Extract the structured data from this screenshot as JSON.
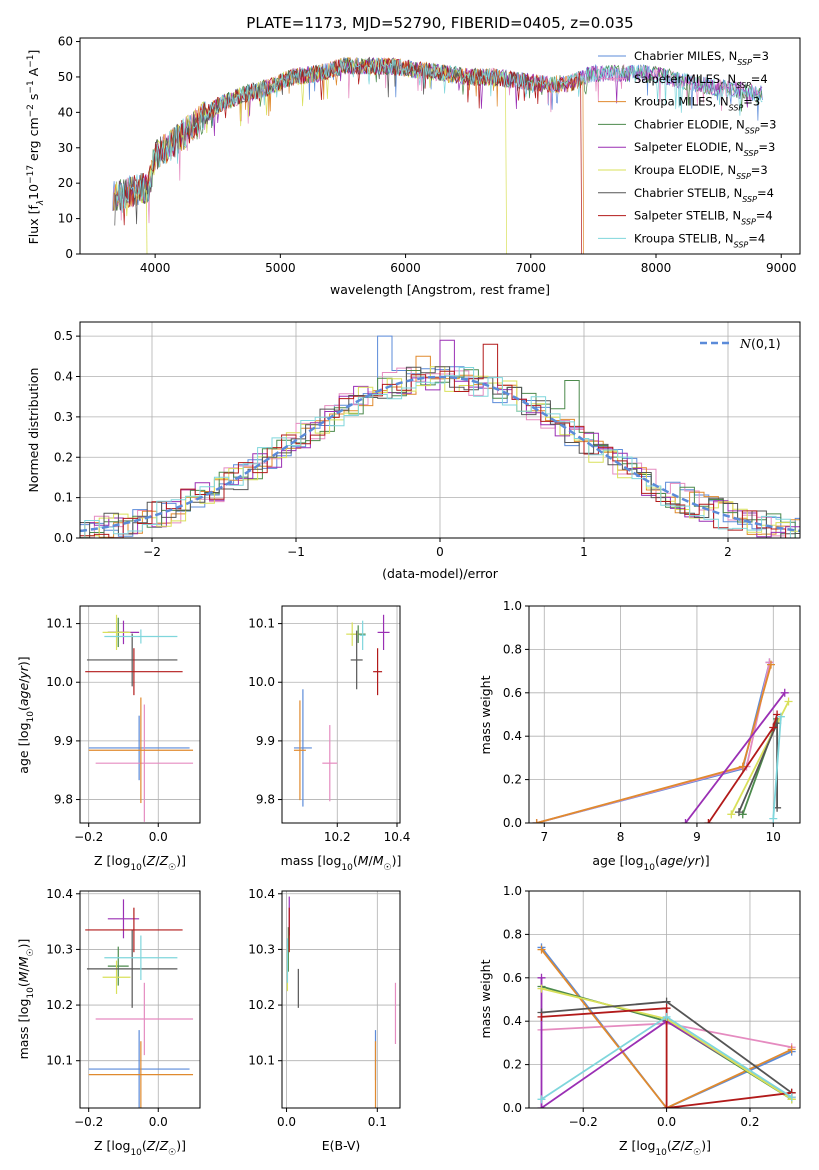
{
  "colors": {
    "chabrier_miles": "#5b8bd9",
    "salpeter_miles": "#e58bc0",
    "kroupa_miles": "#e08a2e",
    "chabrier_elodie": "#4c8a4c",
    "salpeter_elodie": "#9a2fb4",
    "kroupa_elodie": "#d9e05a",
    "chabrier_stelib": "#555555",
    "salpeter_stelib": "#b21a1a",
    "kroupa_stelib": "#7fd6dc",
    "grid": "#b0b0b0",
    "gaussian": "#5b8bd9"
  },
  "chart_data": [
    {
      "id": "spectrum",
      "type": "line",
      "title": "PLATE=1173, MJD=52790, FIBERID=0405, z=0.035",
      "xlabel": "wavelength [Angstrom, rest frame]",
      "ylabel": "Flux [f_λ10^-17 erg cm^-2 s^-1 A^-1]",
      "xlim": [
        3400,
        9150
      ],
      "ylim": [
        0,
        61
      ],
      "xticks": [
        "4000",
        "5000",
        "6000",
        "7000",
        "8000",
        "9000"
      ],
      "yticks": [
        "0",
        "10",
        "20",
        "30",
        "40",
        "50",
        "60"
      ],
      "grid": false,
      "legend_position": "top-right",
      "legend": [
        "Chabrier MILES, N_SSP=3",
        "Salpeter MILES, N_SSP=4",
        "Kroupa MILES, N_SSP=3",
        "Chabrier ELODIE, N_SSP=3",
        "Salpeter ELODIE, N_SSP=3",
        "Kroupa ELODIE, N_SSP=3",
        "Chabrier STELIB, N_SSP=4",
        "Salpeter STELIB, N_SSP=4",
        "Kroupa STELIB, N_SSP=4"
      ],
      "continuum": {
        "x": [
          3650,
          3750,
          3850,
          3950,
          4000,
          4100,
          4300,
          4500,
          4700,
          4900,
          5100,
          5300,
          5500,
          5700,
          5900,
          6100,
          6300,
          6500,
          6700,
          6900,
          7100,
          7300,
          7500,
          7700,
          7900,
          8100,
          8300,
          8500,
          8700,
          8850
        ],
        "y": [
          16,
          17,
          18,
          19,
          28,
          30,
          36,
          42,
          45,
          47,
          50,
          51,
          53,
          53,
          53,
          52,
          51,
          50,
          50,
          49,
          48,
          48,
          51,
          51,
          51,
          50,
          48,
          47,
          46,
          45
        ]
      },
      "drops": [
        {
          "series": "Kroupa ELODIE",
          "x": 6800
        },
        {
          "series": "Salpeter STELIB",
          "x": 7400
        },
        {
          "series": "Kroupa MILES",
          "x": 7420
        }
      ],
      "flat_tail_series": "Chabrier STELIB",
      "flat_tail_from": 7000
    },
    {
      "id": "residual-hist",
      "type": "bar",
      "xlabel": "(data-model)/error",
      "ylabel": "Normed distribution",
      "xlim": [
        -2.5,
        2.5
      ],
      "ylim": [
        0,
        0.535
      ],
      "xticks": [
        "−2",
        "−1",
        "0",
        "1",
        "2"
      ],
      "yticks": [
        "0.0",
        "0.1",
        "0.2",
        "0.3",
        "0.4",
        "0.5"
      ],
      "grid": true,
      "legend_position": "top-right",
      "gaussian_label": "N(0,1)",
      "bin_width": 0.1,
      "bin_start": -2.5,
      "spikes": [
        [
          -0.35,
          0.5
        ],
        [
          -0.15,
          0.45
        ],
        [
          0.05,
          0.49
        ],
        [
          0.35,
          0.48
        ],
        [
          0.9,
          0.39
        ]
      ]
    },
    {
      "id": "age-vs-Z",
      "type": "scatter",
      "xlabel": "Z [log10(Z/Z☉)]",
      "ylabel": "age [log10(age/yr)]",
      "xlim": [
        -0.225,
        0.12
      ],
      "ylim": [
        9.76,
        10.13
      ],
      "xticks": [
        "−0.2",
        "0.0"
      ],
      "xtick_values": [
        -0.2,
        0.0
      ],
      "yticks": [
        "9.8",
        "9.9",
        "10.0",
        "10.1"
      ],
      "ytick_values": [
        9.8,
        9.9,
        10.0,
        10.1
      ],
      "grid": true,
      "points": [
        {
          "series": "Chabrier MILES",
          "x": -0.055,
          "y": 9.888,
          "xerr": 0.145,
          "yerr": 0.055
        },
        {
          "series": "Salpeter MILES",
          "x": -0.04,
          "y": 9.862,
          "xerr": 0.14,
          "yerr": 0.1
        },
        {
          "series": "Kroupa MILES",
          "x": -0.05,
          "y": 9.884,
          "xerr": 0.15,
          "yerr": 0.09
        },
        {
          "series": "Chabrier ELODIE",
          "x": -0.115,
          "y": 10.085,
          "xerr": 0.03,
          "yerr": 0.025
        },
        {
          "series": "Salpeter ELODIE",
          "x": -0.1,
          "y": 10.085,
          "xerr": 0.045,
          "yerr": 0.02
        },
        {
          "series": "Kroupa ELODIE",
          "x": -0.12,
          "y": 10.085,
          "xerr": 0.04,
          "yerr": 0.03
        },
        {
          "series": "Chabrier STELIB",
          "x": -0.075,
          "y": 10.038,
          "xerr": 0.13,
          "yerr": 0.045
        },
        {
          "series": "Salpeter STELIB",
          "x": -0.07,
          "y": 10.018,
          "xerr": 0.14,
          "yerr": 0.04
        },
        {
          "series": "Kroupa STELIB",
          "x": -0.05,
          "y": 10.078,
          "xerr": 0.105,
          "yerr": 0.012
        }
      ]
    },
    {
      "id": "age-vs-mass",
      "type": "scatter",
      "xlabel": "mass [log10(M/M☉)]",
      "ylabel": "",
      "xlim": [
        10.015,
        10.41
      ],
      "ylim": [
        9.76,
        10.13
      ],
      "xticks": [
        "10.2",
        "10.4"
      ],
      "xtick_values": [
        10.2,
        10.4
      ],
      "yticks": [
        "9.8",
        "9.9",
        "10.0",
        "10.1"
      ],
      "ytick_values": [
        9.8,
        9.9,
        10.0,
        10.1
      ],
      "grid": true,
      "points": [
        {
          "series": "Chabrier MILES",
          "x": 10.085,
          "y": 9.888,
          "xerr": 0.03,
          "yerr": 0.1
        },
        {
          "series": "Salpeter MILES",
          "x": 10.175,
          "y": 9.862,
          "xerr": 0.025,
          "yerr": 0.065
        },
        {
          "series": "Kroupa MILES",
          "x": 10.075,
          "y": 9.884,
          "xerr": 0.02,
          "yerr": 0.085
        },
        {
          "series": "Chabrier ELODIE",
          "x": 10.27,
          "y": 10.082,
          "xerr": 0.025,
          "yerr": 0.015
        },
        {
          "series": "Salpeter ELODIE",
          "x": 10.355,
          "y": 10.085,
          "xerr": 0.02,
          "yerr": 0.03
        },
        {
          "series": "Kroupa ELODIE",
          "x": 10.25,
          "y": 10.082,
          "xerr": 0.02,
          "yerr": 0.02
        },
        {
          "series": "Chabrier STELIB",
          "x": 10.265,
          "y": 10.038,
          "xerr": 0.02,
          "yerr": 0.05
        },
        {
          "series": "Salpeter STELIB",
          "x": 10.335,
          "y": 10.018,
          "xerr": 0.015,
          "yerr": 0.04
        },
        {
          "series": "Kroupa STELIB",
          "x": 10.285,
          "y": 10.08,
          "xerr": 0.01,
          "yerr": 0.025
        }
      ]
    },
    {
      "id": "weight-vs-age",
      "type": "line",
      "xlabel": "age [log10(age/yr)]",
      "ylabel": "mass weight",
      "xlim": [
        6.8,
        10.35
      ],
      "ylim": [
        0,
        1
      ],
      "xticks": [
        "7",
        "8",
        "9",
        "10"
      ],
      "xtick_values": [
        7,
        8,
        9,
        10
      ],
      "yticks": [
        "0.0",
        "0.2",
        "0.4",
        "0.6",
        "0.8",
        "1.0"
      ],
      "ytick_values": [
        0,
        0.2,
        0.4,
        0.6,
        0.8,
        1.0
      ],
      "grid": true,
      "series": [
        {
          "name": "Chabrier MILES",
          "x": [
            6.9,
            9.6,
            9.95
          ],
          "y": [
            0.0,
            0.25,
            0.74
          ]
        },
        {
          "name": "Salpeter MILES",
          "x": [
            6.9,
            9.65,
            9.95
          ],
          "y": [
            0.0,
            0.26,
            0.74
          ]
        },
        {
          "name": "Kroupa MILES",
          "x": [
            6.9,
            9.6,
            9.97
          ],
          "y": [
            0.0,
            0.26,
            0.73
          ]
        },
        {
          "name": "Chabrier ELODIE",
          "x": [
            9.6,
            10.05
          ],
          "y": [
            0.04,
            0.48
          ]
        },
        {
          "name": "Salpeter ELODIE",
          "x": [
            8.85,
            10.15
          ],
          "y": [
            0.0,
            0.6
          ]
        },
        {
          "name": "Kroupa ELODIE",
          "x": [
            9.45,
            10.2
          ],
          "y": [
            0.04,
            0.56
          ]
        },
        {
          "name": "Chabrier STELIB",
          "x": [
            9.55,
            10.05,
            10.05
          ],
          "y": [
            0.05,
            0.46,
            0.07
          ]
        },
        {
          "name": "Salpeter STELIB",
          "x": [
            9.15,
            10.0,
            10.05
          ],
          "y": [
            0.0,
            0.44,
            0.5
          ]
        },
        {
          "name": "Kroupa STELIB",
          "x": [
            10.0,
            10.1
          ],
          "y": [
            0.02,
            0.49
          ]
        }
      ]
    },
    {
      "id": "mass-vs-Z",
      "type": "scatter",
      "xlabel": "Z [log10(Z/Z☉)]",
      "ylabel": "mass [log10(M/M☉)]",
      "xlim": [
        -0.225,
        0.12
      ],
      "ylim": [
        10.015,
        10.405
      ],
      "xticks": [
        "−0.2",
        "0.0"
      ],
      "xtick_values": [
        -0.2,
        0.0
      ],
      "yticks": [
        "10.1",
        "10.2",
        "10.3",
        "10.4"
      ],
      "ytick_values": [
        10.1,
        10.2,
        10.3,
        10.4
      ],
      "grid": true,
      "points": [
        {
          "series": "Chabrier MILES",
          "x": -0.055,
          "y": 10.085,
          "xerr": 0.145,
          "yerr": 0.07
        },
        {
          "series": "Salpeter MILES",
          "x": -0.04,
          "y": 10.175,
          "xerr": 0.14,
          "yerr": 0.065
        },
        {
          "series": "Kroupa MILES",
          "x": -0.05,
          "y": 10.075,
          "xerr": 0.15,
          "yerr": 0.06
        },
        {
          "series": "Chabrier ELODIE",
          "x": -0.115,
          "y": 10.27,
          "xerr": 0.03,
          "yerr": 0.035
        },
        {
          "series": "Salpeter ELODIE",
          "x": -0.1,
          "y": 10.355,
          "xerr": 0.045,
          "yerr": 0.035
        },
        {
          "series": "Kroupa ELODIE",
          "x": -0.12,
          "y": 10.25,
          "xerr": 0.04,
          "yerr": 0.03
        },
        {
          "series": "Chabrier STELIB",
          "x": -0.075,
          "y": 10.265,
          "xerr": 0.13,
          "yerr": 0.07
        },
        {
          "series": "Salpeter STELIB",
          "x": -0.07,
          "y": 10.335,
          "xerr": 0.14,
          "yerr": 0.04
        },
        {
          "series": "Kroupa STELIB",
          "x": -0.05,
          "y": 10.285,
          "xerr": 0.105,
          "yerr": 0.04
        }
      ]
    },
    {
      "id": "mass-vs-ebv",
      "type": "scatter",
      "xlabel": "E(B-V)",
      "ylabel": "",
      "xlim": [
        -0.005,
        0.125
      ],
      "ylim": [
        10.015,
        10.405
      ],
      "xticks": [
        "0.0",
        "0.1"
      ],
      "xtick_values": [
        0.0,
        0.1
      ],
      "yticks": [
        "10.1",
        "10.2",
        "10.3",
        "10.4"
      ],
      "ytick_values": [
        10.1,
        10.2,
        10.3,
        10.4
      ],
      "grid": true,
      "points": [
        {
          "series": "Chabrier MILES",
          "x": 0.098,
          "y": 10.11,
          "xerr": 0,
          "yerr": 0.045
        },
        {
          "series": "Salpeter MILES",
          "x": 0.12,
          "y": 10.185,
          "xerr": 0,
          "yerr": 0.055
        },
        {
          "series": "Kroupa MILES",
          "x": 0.098,
          "y": 10.075,
          "xerr": 0,
          "yerr": 0.06
        },
        {
          "series": "Chabrier ELODIE",
          "x": 0.002,
          "y": 10.3,
          "xerr": 0,
          "yerr": 0.04
        },
        {
          "series": "Salpeter ELODIE",
          "x": 0.003,
          "y": 10.36,
          "xerr": 0,
          "yerr": 0.035
        },
        {
          "series": "Kroupa ELODIE",
          "x": 0.001,
          "y": 10.265,
          "xerr": 0,
          "yerr": 0.04
        },
        {
          "series": "Chabrier STELIB",
          "x": 0.013,
          "y": 10.23,
          "xerr": 0,
          "yerr": 0.035
        },
        {
          "series": "Salpeter STELIB",
          "x": 0.003,
          "y": 10.335,
          "xerr": 0,
          "yerr": 0.04
        },
        {
          "series": "Kroupa STELIB",
          "x": 0.001,
          "y": 10.28,
          "xerr": 0,
          "yerr": 0.04
        }
      ]
    },
    {
      "id": "weight-vs-Z",
      "type": "line",
      "xlabel": "Z [log10(Z/Z☉)]",
      "ylabel": "mass weight",
      "xlim": [
        -0.33,
        0.32
      ],
      "ylim": [
        0,
        1
      ],
      "xticks": [
        "−0.2",
        "0.0",
        "0.2"
      ],
      "xtick_values": [
        -0.2,
        0.0,
        0.2
      ],
      "yticks": [
        "0.0",
        "0.2",
        "0.4",
        "0.6",
        "0.8",
        "1.0"
      ],
      "ytick_values": [
        0,
        0.2,
        0.4,
        0.6,
        0.8,
        1.0
      ],
      "grid": true,
      "series": [
        {
          "name": "Chabrier MILES",
          "x": [
            -0.3,
            0.0,
            0.3
          ],
          "y": [
            0.74,
            0.0,
            0.26
          ]
        },
        {
          "name": "Salpeter MILES",
          "x": [
            -0.3,
            0.0,
            0.3
          ],
          "y": [
            0.36,
            0.39,
            0.28
          ]
        },
        {
          "name": "Kroupa MILES",
          "x": [
            -0.3,
            0.0,
            0.3
          ],
          "y": [
            0.73,
            0.0,
            0.27
          ]
        },
        {
          "name": "Chabrier ELODIE",
          "x": [
            -0.3,
            0.0,
            0.3
          ],
          "y": [
            0.56,
            0.4,
            0.04
          ]
        },
        {
          "name": "Salpeter ELODIE",
          "x": [
            -0.3,
            -0.3,
            0.0,
            0.3
          ],
          "y": [
            0.6,
            0.0,
            0.4,
            0.05
          ]
        },
        {
          "name": "Kroupa ELODIE",
          "x": [
            -0.3,
            0.0,
            0.3
          ],
          "y": [
            0.55,
            0.41,
            0.04
          ]
        },
        {
          "name": "Chabrier STELIB",
          "x": [
            -0.3,
            0.0,
            0.3
          ],
          "y": [
            0.44,
            0.49,
            0.07
          ]
        },
        {
          "name": "Salpeter STELIB",
          "x": [
            -0.3,
            0.0,
            0.0,
            0.3
          ],
          "y": [
            0.42,
            0.46,
            0.0,
            0.07
          ]
        },
        {
          "name": "Kroupa STELIB",
          "x": [
            -0.3,
            0.0,
            0.3
          ],
          "y": [
            0.04,
            0.42,
            0.05
          ]
        }
      ]
    }
  ]
}
